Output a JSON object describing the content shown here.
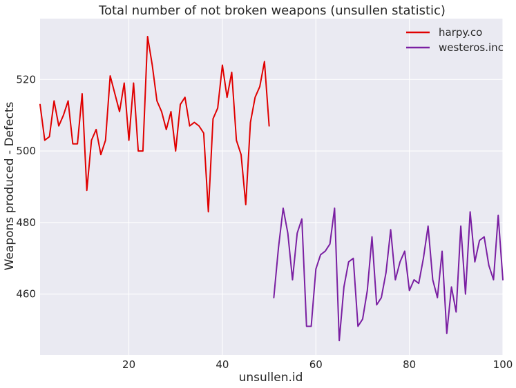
{
  "chart_data": {
    "type": "line",
    "title": "Total number of not broken weapons (unsullen statistic)",
    "xlabel": "unsullen.id",
    "ylabel": "Weapons produced - Defects",
    "xlim": [
      1,
      100
    ],
    "ylim": [
      443,
      537
    ],
    "xticks": [
      20,
      40,
      60,
      80,
      100
    ],
    "yticks": [
      460,
      480,
      500,
      520
    ],
    "grid": true,
    "legend_position": "top-right",
    "series": [
      {
        "name": "harpy.co",
        "color": "#e00000",
        "x": [
          1,
          2,
          3,
          4,
          5,
          6,
          7,
          8,
          9,
          10,
          11,
          12,
          13,
          14,
          15,
          16,
          17,
          18,
          19,
          20,
          21,
          22,
          23,
          24,
          25,
          26,
          27,
          28,
          29,
          30,
          31,
          32,
          33,
          34,
          35,
          36,
          37,
          38,
          39,
          40,
          41,
          42,
          43,
          44,
          45,
          46,
          47,
          48,
          49,
          50
        ],
        "values": [
          513,
          503,
          504,
          514,
          507,
          510,
          514,
          502,
          502,
          516,
          489,
          503,
          506,
          499,
          503,
          521,
          516,
          511,
          519,
          503,
          519,
          500,
          500,
          532,
          524,
          514,
          511,
          506,
          511,
          500,
          513,
          515,
          507,
          508,
          507,
          505,
          483,
          509,
          512,
          524,
          515,
          522,
          503,
          499,
          485,
          508,
          515,
          518,
          525,
          507
        ]
      },
      {
        "name": "westeros.inc",
        "color": "#7a1fa2",
        "x": [
          51,
          52,
          53,
          54,
          55,
          56,
          57,
          58,
          59,
          60,
          61,
          62,
          63,
          64,
          65,
          66,
          67,
          68,
          69,
          70,
          71,
          72,
          73,
          74,
          75,
          76,
          77,
          78,
          79,
          80,
          81,
          82,
          83,
          84,
          85,
          86,
          87,
          88,
          89,
          90,
          91,
          92,
          93,
          94,
          95,
          96,
          97,
          98,
          99,
          100
        ],
        "values": [
          459,
          473,
          484,
          477,
          464,
          477,
          481,
          451,
          451,
          467,
          471,
          472,
          474,
          484,
          447,
          462,
          469,
          470,
          451,
          453,
          461,
          476,
          457,
          459,
          466,
          478,
          464,
          469,
          472,
          461,
          464,
          463,
          470,
          479,
          464,
          459,
          472,
          449,
          462,
          455,
          479,
          460,
          483,
          469,
          475,
          476,
          468,
          464,
          482,
          464
        ]
      }
    ]
  }
}
